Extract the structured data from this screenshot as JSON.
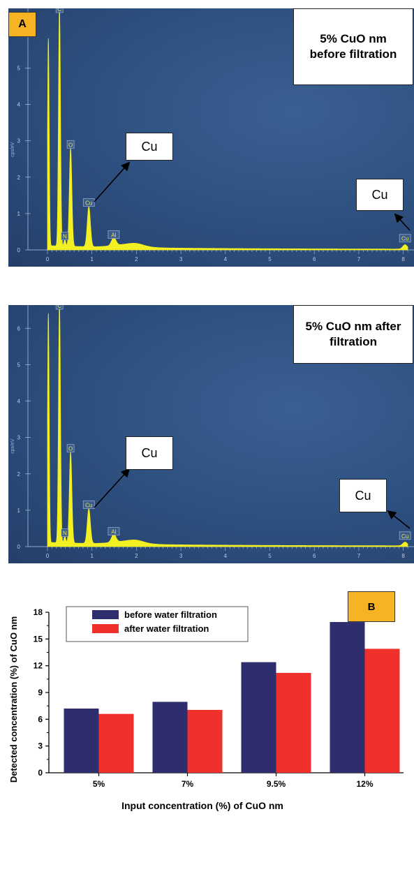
{
  "chart_data": [
    {
      "type": "line",
      "panel_label": "A",
      "title": "5% CuO nm before filtration",
      "ylabel": "cps/eV",
      "xlim": [
        0,
        8.1
      ],
      "ylim": [
        0,
        6.6
      ],
      "x_ticks": [
        "0",
        "1",
        "2",
        "3",
        "4",
        "5",
        "6",
        "7",
        "8"
      ],
      "y_ticks": [
        "0",
        "1",
        "2",
        "3",
        "4",
        "5"
      ],
      "peaks": [
        {
          "element": "",
          "x": 0.02,
          "y": 5.7
        },
        {
          "element": "C",
          "x": 0.27,
          "y": 6.6
        },
        {
          "element": "N",
          "x": 0.39,
          "y": 0.18
        },
        {
          "element": "O",
          "x": 0.52,
          "y": 2.7
        },
        {
          "element": "Cu",
          "x": 0.93,
          "y": 1.1
        },
        {
          "element": "Al",
          "x": 1.49,
          "y": 0.22
        },
        {
          "element": "Cu",
          "x": 8.04,
          "y": 0.12
        }
      ],
      "annotations": [
        "Cu",
        "Cu"
      ],
      "color": "#f2ef22"
    },
    {
      "type": "line",
      "title": "5% CuO nm after filtration",
      "ylabel": "cps/eV",
      "xlim": [
        0,
        8.1
      ],
      "ylim": [
        0,
        6.6
      ],
      "x_ticks": [
        "0",
        "1",
        "2",
        "3",
        "4",
        "5",
        "6",
        "7",
        "8"
      ],
      "y_ticks": [
        "0",
        "1",
        "2",
        "3",
        "4",
        "5",
        "6"
      ],
      "peaks": [
        {
          "element": "",
          "x": 0.02,
          "y": 6.3
        },
        {
          "element": "C",
          "x": 0.27,
          "y": 6.6
        },
        {
          "element": "N",
          "x": 0.39,
          "y": 0.18
        },
        {
          "element": "O",
          "x": 0.52,
          "y": 2.5
        },
        {
          "element": "Cu",
          "x": 0.93,
          "y": 0.95
        },
        {
          "element": "Al",
          "x": 1.49,
          "y": 0.22
        },
        {
          "element": "Cu",
          "x": 8.04,
          "y": 0.1
        }
      ],
      "annotations": [
        "Cu",
        "Cu"
      ],
      "color": "#f2ef22"
    },
    {
      "type": "bar",
      "panel_label": "B",
      "categories": [
        "5%",
        "7%",
        "9.5%",
        "12%"
      ],
      "series": [
        {
          "name": "before water filtration",
          "values": [
            7.2,
            7.95,
            12.4,
            16.9
          ],
          "color": "#2e2d6e"
        },
        {
          "name": "after water filtration",
          "values": [
            6.6,
            7.05,
            11.2,
            13.9
          ],
          "color": "#f0302b"
        }
      ],
      "xlabel": "Input concentration (%) of CuO nm",
      "ylabel": "Detected concentration (%) of CuO nm",
      "ylim": [
        0,
        18
      ],
      "y_ticks": [
        "0",
        "3",
        "6",
        "9",
        "12",
        "15",
        "18"
      ],
      "legend": "top-left"
    }
  ]
}
